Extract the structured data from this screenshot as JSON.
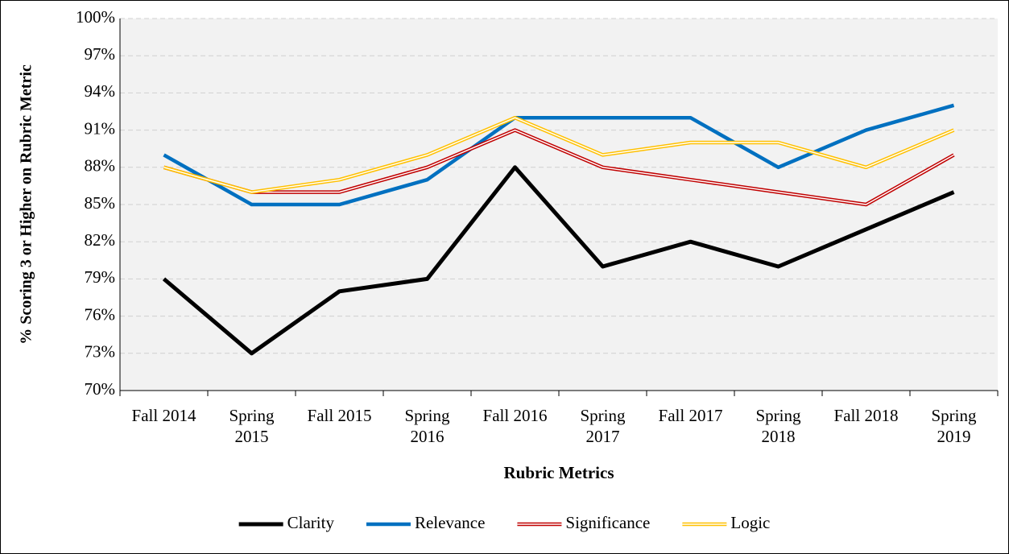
{
  "chart_data": {
    "type": "line",
    "x_label": "Rubric Metrics",
    "y_label": "% Scoring 3 or Higher on Rubric Metric",
    "categories": [
      "Fall 2014",
      "Spring 2015",
      "Fall 2015",
      "Spring 2016",
      "Fall 2016",
      "Spring 2017",
      "Fall 2017",
      "Spring 2018",
      "Fall 2018",
      "Spring 2019"
    ],
    "series": [
      {
        "name": "Clarity",
        "color": "#000000",
        "style": "solid",
        "values": [
          79,
          73,
          78,
          79,
          88,
          80,
          82,
          80,
          83,
          86
        ]
      },
      {
        "name": "Relevance",
        "color": "#0070c0",
        "style": "solid",
        "values": [
          89,
          85,
          85,
          87,
          92,
          92,
          92,
          88,
          91,
          93
        ]
      },
      {
        "name": "Significance",
        "color": "#c00000",
        "style": "double",
        "values": [
          88,
          86,
          86,
          88,
          91,
          88,
          87,
          86,
          85,
          89
        ]
      },
      {
        "name": "Logic",
        "color": "#ffc000",
        "style": "double",
        "values": [
          88,
          86,
          87,
          89,
          92,
          89,
          90,
          90,
          88,
          91
        ]
      }
    ],
    "ylim": [
      70,
      100
    ],
    "yticks": [
      {
        "value": 70,
        "label": "70%"
      },
      {
        "value": 73,
        "label": "73%"
      },
      {
        "value": 76,
        "label": "76%"
      },
      {
        "value": 79,
        "label": "79%"
      },
      {
        "value": 82,
        "label": "82%"
      },
      {
        "value": 85,
        "label": "85%"
      },
      {
        "value": 88,
        "label": "88%"
      },
      {
        "value": 91,
        "label": "91%"
      },
      {
        "value": 94,
        "label": "94%"
      },
      {
        "value": 97,
        "label": "97%"
      },
      {
        "value": 100,
        "label": "100%"
      }
    ],
    "grid": true,
    "legend": "bottom"
  }
}
